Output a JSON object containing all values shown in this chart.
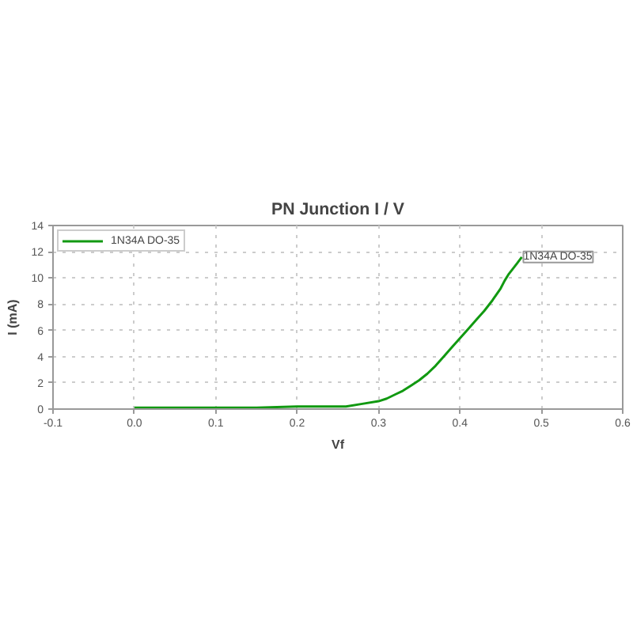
{
  "chart_data": {
    "type": "line",
    "title": "PN Junction I / V",
    "xlabel": "Vf",
    "ylabel": "I (mA)",
    "xlim": [
      -0.1,
      0.6
    ],
    "xticks": [
      -0.1,
      {
        "value": 0,
        "label": "0.0"
      },
      0.1,
      0.2,
      0.3,
      0.4,
      0.5,
      0.6
    ],
    "ylim": [
      0,
      14
    ],
    "yticks": [
      0,
      2,
      4,
      6,
      8,
      10,
      12,
      14
    ],
    "grid": true,
    "legend": "top left",
    "series": [
      {
        "name": "1N34A DO-35",
        "color": "#119911",
        "x": [
          0,
          0.05,
          0.1,
          0.15,
          0.2,
          0.26,
          0.28,
          0.3,
          0.31,
          0.32,
          0.33,
          0.34,
          0.35,
          0.36,
          0.37,
          0.38,
          0.39,
          0.4,
          0.41,
          0.42,
          0.43,
          0.44,
          0.45,
          0.455,
          0.46,
          0.47,
          0.476
        ],
        "values": [
          0.1,
          0.1,
          0.1,
          0.1,
          0.2,
          0.2,
          0.4,
          0.6,
          0.8,
          1.1,
          1.4,
          1.8,
          2.2,
          2.7,
          3.3,
          4.0,
          4.7,
          5.4,
          6.1,
          6.8,
          7.5,
          8.3,
          9.2,
          9.8,
          10.3,
          11.1,
          11.6
        ]
      }
    ]
  }
}
